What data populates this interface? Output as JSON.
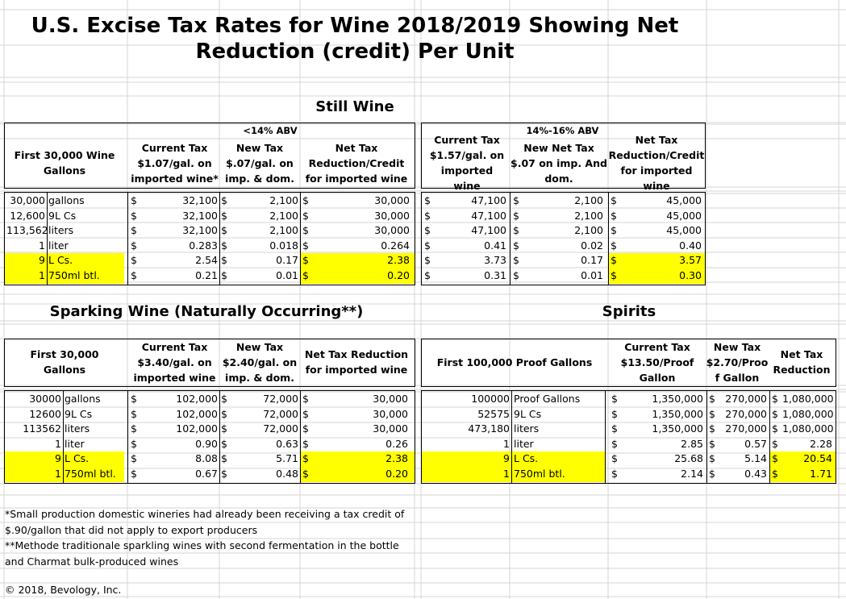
{
  "title": "U.S. Excise Tax Rates for Wine 2018/2019 Showing Net Reduction (credit) Per Unit",
  "still_wine": {
    "section": "Still Wine",
    "group_lt14": "<14% ABV",
    "group_14_16": "14%-16% ABV",
    "h_first": "First 30,000 Wine Gallons",
    "h_cur": "Current Tax $1.07/gal. on imported wine*",
    "h_new": "New Tax $.07/gal. on imp. & dom.",
    "h_net": "Net Tax Reduction/Credit for imported wine",
    "h_cur2": "Current Tax $1.57/gal. on imported wine",
    "h_new2": "New Net Tax $.07 on imp. And dom.",
    "h_net2": "Net Tax Reduction/Credit for imported wine",
    "rows": [
      {
        "qty": "30,000",
        "unit": "gallons",
        "c1": "32,100",
        "n1": "2,100",
        "r1": "30,000",
        "c2": "47,100",
        "n2": "2,100",
        "r2": "45,000"
      },
      {
        "qty": "12,600",
        "unit": "9L Cs",
        "c1": "32,100",
        "n1": "2,100",
        "r1": "30,000",
        "c2": "47,100",
        "n2": "2,100",
        "r2": "45,000"
      },
      {
        "qty": "113,562",
        "unit": "liters",
        "c1": "32,100",
        "n1": "2,100",
        "r1": "30,000",
        "c2": "47,100",
        "n2": "2,100",
        "r2": "45,000"
      },
      {
        "qty": "1",
        "unit": "liter",
        "c1": "0.283",
        "n1": "0.018",
        "r1": "0.264",
        "c2": "0.41",
        "n2": "0.02",
        "r2": "0.40"
      },
      {
        "qty": "9",
        "unit": "L Cs.",
        "c1": "2.54",
        "n1": "0.17",
        "r1": "2.38",
        "c2": "3.73",
        "n2": "0.17",
        "r2": "3.57"
      },
      {
        "qty": "1",
        "unit": "750ml btl.",
        "c1": "0.21",
        "n1": "0.01",
        "r1": "0.20",
        "c2": "0.31",
        "n2": "0.01",
        "r2": "0.30"
      }
    ]
  },
  "sparkling": {
    "section": "Sparking Wine (Naturally Occurring**)",
    "h_first": "First 30,000 Gallons",
    "h_cur": "Current Tax $3.40/gal. on imported wine",
    "h_new": "New Tax $2.40/gal. on imp. & dom.",
    "h_net": "Net Tax Reduction for imported wine",
    "rows": [
      {
        "qty": "30000",
        "unit": "gallons",
        "c": "102,000",
        "n": "72,000",
        "r": "30,000"
      },
      {
        "qty": "12600",
        "unit": "9L Cs",
        "c": "102,000",
        "n": "72,000",
        "r": "30,000"
      },
      {
        "qty": "113562",
        "unit": "liters",
        "c": "102,000",
        "n": "72,000",
        "r": "30,000"
      },
      {
        "qty": "1",
        "unit": "liter",
        "c": "0.90",
        "n": "0.63",
        "r": "0.26"
      },
      {
        "qty": "9",
        "unit": "L Cs.",
        "c": "8.08",
        "n": "5.71",
        "r": "2.38"
      },
      {
        "qty": "1",
        "unit": "750ml btl.",
        "c": "0.67",
        "n": "0.48",
        "r": "0.20"
      }
    ]
  },
  "spirits": {
    "section": "Spirits",
    "h_first": "First 100,000 Proof Gallons",
    "h_cur": "Current Tax $13.50/Proof Gallon",
    "h_new": "New Tax $2.70/Proo f Gallon",
    "h_net": "Net Tax Reduction",
    "rows": [
      {
        "qty": "100000",
        "unit": "Proof Gallons",
        "c": "1,350,000",
        "n": "270,000",
        "r": "1,080,000"
      },
      {
        "qty": "52575",
        "unit": "9L Cs",
        "c": "1,350,000",
        "n": "270,000",
        "r": "1,080,000"
      },
      {
        "qty": "473,180",
        "unit": "liters",
        "c": "1,350,000",
        "n": "270,000",
        "r": "1,080,000"
      },
      {
        "qty": "1",
        "unit": "liter",
        "c": "2.85",
        "n": "0.57",
        "r": "2.28"
      },
      {
        "qty": "9",
        "unit": "L Cs.",
        "c": "25.68",
        "n": "5.14",
        "r": "20.54"
      },
      {
        "qty": "1",
        "unit": "750ml btl.",
        "c": "2.14",
        "n": "0.43",
        "r": "1.71"
      }
    ]
  },
  "dollar": "$",
  "notes": {
    "n1": "*Small production domestic wineries had already been receiving a tax credit of $.90/gallon that did not apply to export producers",
    "n2": "**Methode traditionale sparkling wines with second fermentation in the bottle and Charmat bulk-produced wines"
  },
  "copyright": "© 2018, Bevology, Inc.",
  "colors": {
    "highlight": "#ffff00",
    "gridline": "#d4d4d4"
  }
}
